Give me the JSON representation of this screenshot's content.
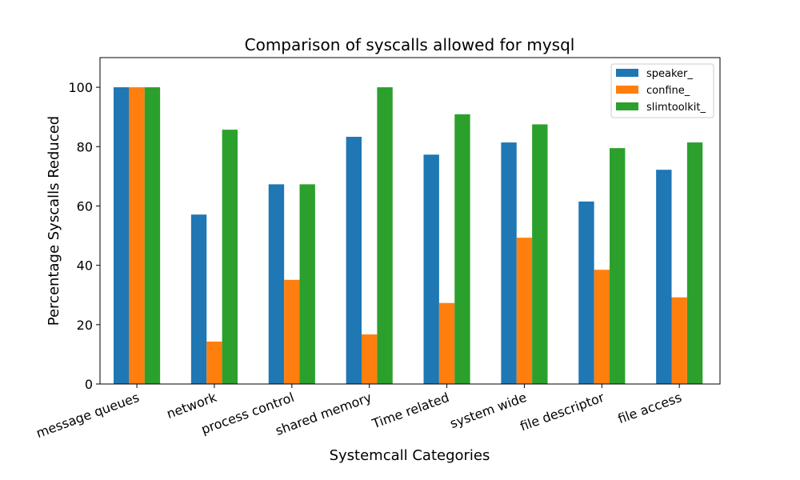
{
  "chart_data": {
    "type": "bar",
    "title": "Comparison of syscalls allowed for mysql",
    "xlabel": "Systemcall Categories",
    "ylabel": "Percentage Syscalls Reduced",
    "categories": [
      "message queues",
      "network",
      "process control",
      "shared memory",
      "Time related",
      "system wide",
      "file descriptor",
      "file access"
    ],
    "ylim": [
      0,
      110
    ],
    "yticks": [
      0,
      20,
      40,
      60,
      80,
      100
    ],
    "grid": false,
    "legend_position": "top-right",
    "series": [
      {
        "name": "speaker_",
        "color": "#1f77b4",
        "values": [
          100,
          57.1,
          67.3,
          83.3,
          77.3,
          81.4,
          61.5,
          72.2
        ]
      },
      {
        "name": "confine_",
        "color": "#ff7f0e",
        "values": [
          100,
          14.3,
          35.1,
          16.7,
          27.3,
          49.3,
          38.5,
          29.2
        ]
      },
      {
        "name": "slimtoolkit_",
        "color": "#2ca02c",
        "values": [
          100,
          85.7,
          67.3,
          100,
          90.9,
          87.5,
          79.5,
          81.4
        ]
      }
    ]
  }
}
